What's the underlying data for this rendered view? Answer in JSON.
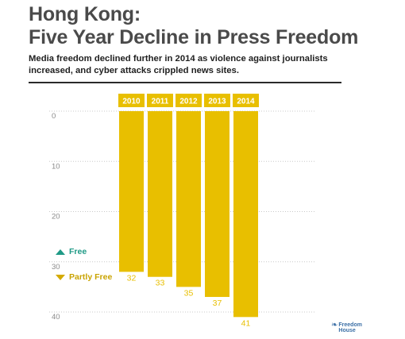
{
  "header": {
    "title_line1": "Hong Kong:",
    "title_line2": "Five Year Decline in Press Freedom",
    "subtitle": "Media freedom declined further in 2014 as violence against journalists increased, and cyber attacks crippled news sites."
  },
  "legend": {
    "free_label": "Free",
    "partly_free_label": "Partly Free",
    "free_icon": "triangle-up-icon",
    "partly_free_icon": "triangle-down-icon"
  },
  "logo": {
    "text_line1": "Freedom",
    "text_line2": "House"
  },
  "chart_data": {
    "type": "bar",
    "categories": [
      "2010",
      "2011",
      "2012",
      "2013",
      "2014"
    ],
    "values": [
      32,
      33,
      35,
      37,
      41
    ],
    "ylim": [
      0,
      40
    ],
    "yticks": [
      0,
      10,
      20,
      30,
      40
    ],
    "y_inverted": true,
    "grid": true,
    "data_labels": true,
    "colors": {
      "bar": "#e8bf00",
      "category_label_bg": "#e8bf00",
      "category_label_text": "#ffffff",
      "value_label": "#e8bf00",
      "tick_label": "#8a8a8a",
      "grid": "#c8c8c8"
    }
  }
}
